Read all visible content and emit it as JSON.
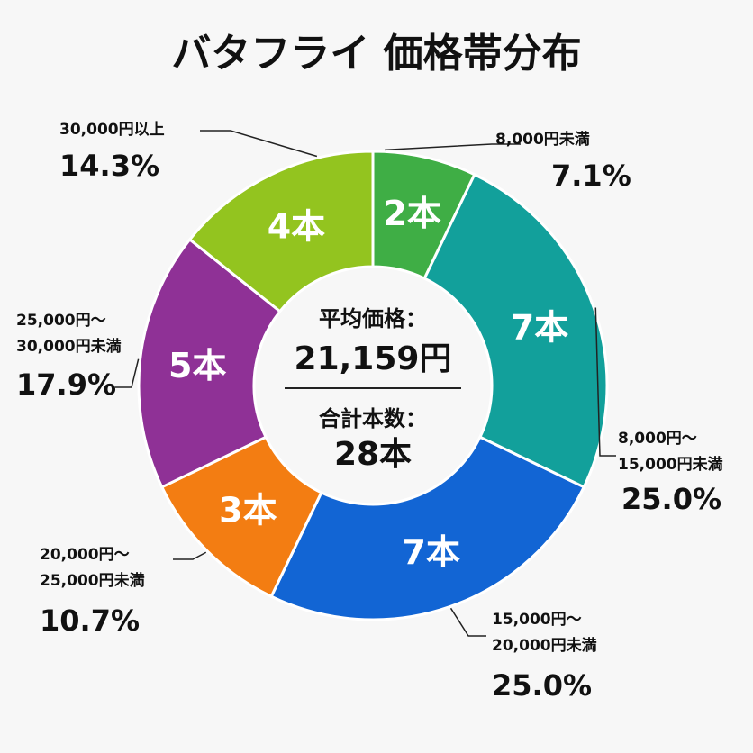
{
  "chart_data": {
    "type": "pie",
    "variant": "donut",
    "title": "バタフライ 価格帯分布",
    "unit_label": "本",
    "segments": [
      {
        "range_lines": [
          "8,000円未満"
        ],
        "count": 2,
        "count_label": "2本",
        "percent": 7.1,
        "percent_label": "7.1%",
        "color": "#3fae45"
      },
      {
        "range_lines": [
          "8,000円〜",
          "15,000円未満"
        ],
        "count": 7,
        "count_label": "7本",
        "percent": 25.0,
        "percent_label": "25.0%",
        "color": "#12a09b"
      },
      {
        "range_lines": [
          "15,000円〜",
          "20,000円未満"
        ],
        "count": 7,
        "count_label": "7本",
        "percent": 25.0,
        "percent_label": "25.0%",
        "color": "#1265d4"
      },
      {
        "range_lines": [
          "20,000円〜",
          "25,000円未満"
        ],
        "count": 3,
        "count_label": "3本",
        "percent": 10.7,
        "percent_label": "10.7%",
        "color": "#f37d12"
      },
      {
        "range_lines": [
          "25,000円〜",
          "30,000円未満"
        ],
        "count": 5,
        "count_label": "5本",
        "percent": 17.9,
        "percent_label": "17.9%",
        "color": "#8f3196"
      },
      {
        "range_lines": [
          "30,000円以上"
        ],
        "count": 4,
        "count_label": "4本",
        "percent": 14.3,
        "percent_label": "14.3%",
        "color": "#93c41f"
      }
    ],
    "center": {
      "average_label": "平均価格：",
      "average_value": "21,159円",
      "total_label": "合計本数：",
      "total_value": "28本"
    }
  }
}
